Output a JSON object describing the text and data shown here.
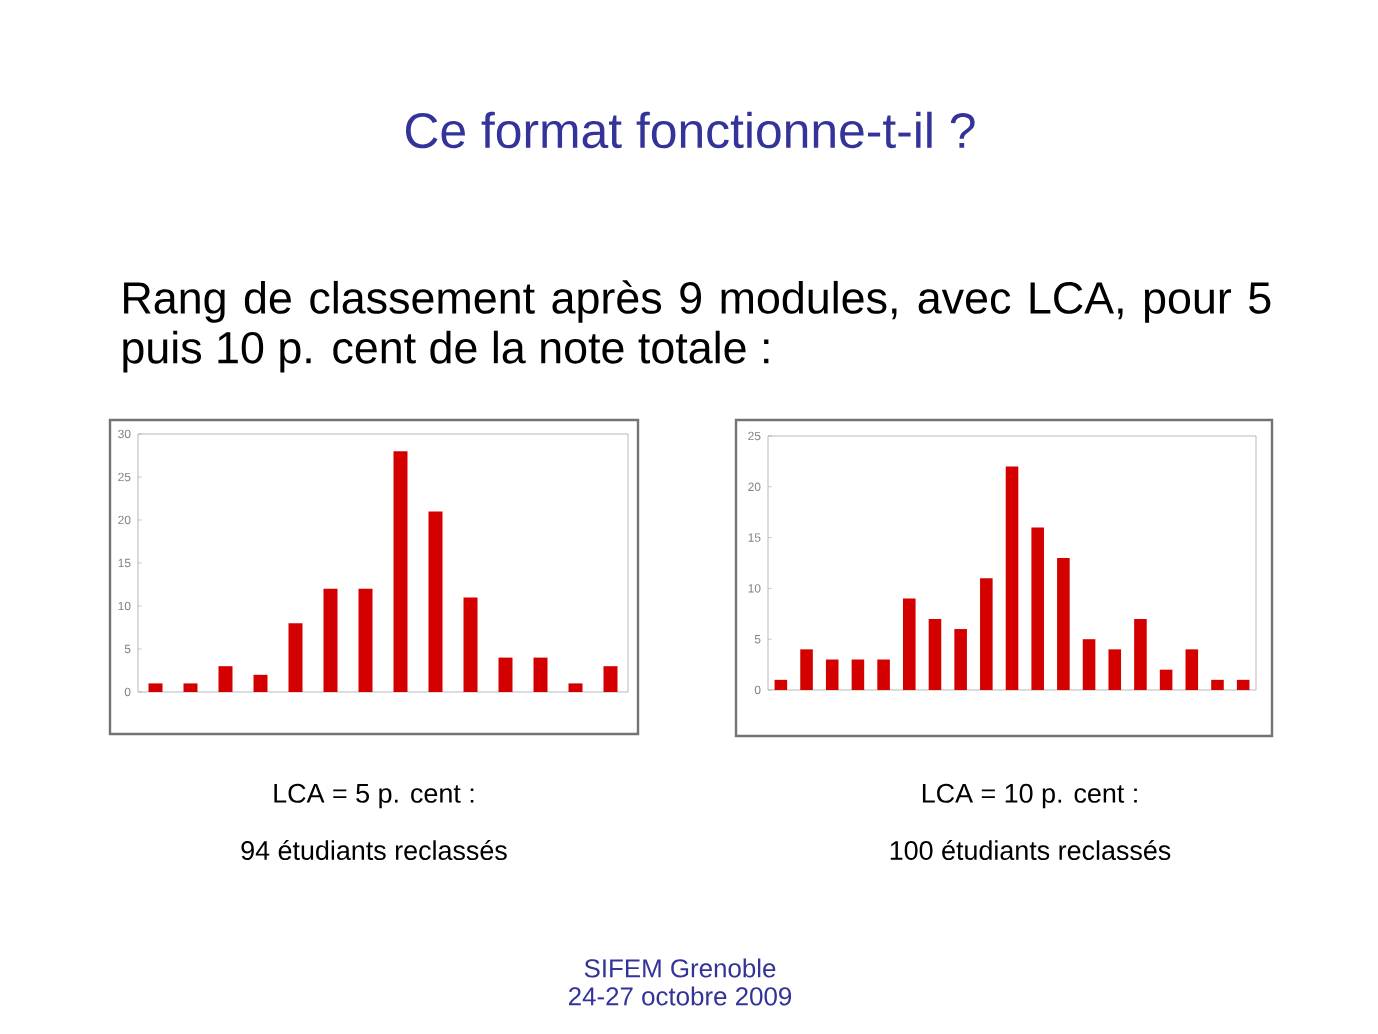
{
  "chart_data": [
    {
      "type": "other",
      "title": "Ce format fonctionne-t-il ?",
      "subtitle": "Rang de classement après 9 modules, avec LCA, pour 5 puis 10 p. cent de la note totale :",
      "annotations": [
        "SIFEM Grenoble",
        "24-27 octobre 2009"
      ]
    },
    {
      "type": "bar",
      "categories": [
        null,
        null,
        null,
        null,
        null,
        null,
        null,
        null,
        null,
        null,
        null,
        null,
        null,
        null
      ],
      "values": [
        1,
        1,
        3,
        2,
        8,
        12,
        12,
        28,
        21,
        11,
        4,
        4,
        1,
        3
      ],
      "color": "#d40000",
      "ylim": [
        0,
        30
      ],
      "yticks": [
        0,
        5,
        10,
        15,
        20,
        25,
        30
      ],
      "annotations": [
        "LCA = 5 p. cent :",
        "94 étudiants reclassés"
      ]
    },
    {
      "type": "bar",
      "categories": [
        null,
        null,
        null,
        null,
        null,
        null,
        null,
        null,
        null,
        null,
        null,
        null,
        null,
        null,
        null,
        null,
        null,
        null,
        null
      ],
      "values": [
        1,
        4,
        3,
        3,
        3,
        9,
        7,
        6,
        11,
        22,
        16,
        13,
        5,
        4,
        7,
        2,
        4,
        1,
        1
      ],
      "color": "#d40000",
      "ylim": [
        0,
        25
      ],
      "yticks": [
        0,
        5,
        10,
        15,
        20,
        25
      ],
      "annotations": [
        "LCA = 10 p. cent :",
        "100 étudiants reclassés"
      ]
    }
  ]
}
